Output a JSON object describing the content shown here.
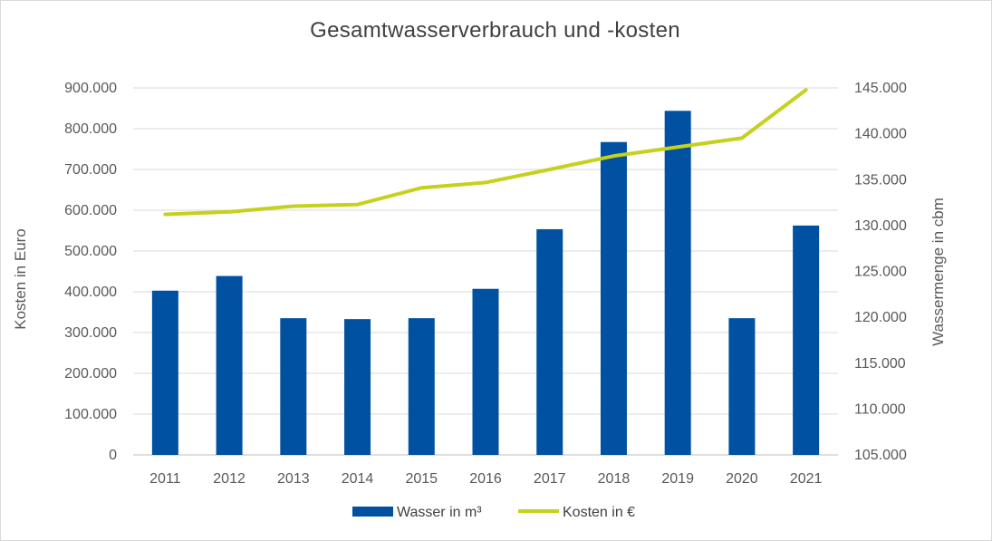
{
  "chart_data": {
    "type": "bar",
    "title": "Gesamtwasserverbrauch  und -kosten",
    "categories": [
      "2011",
      "2012",
      "2013",
      "2014",
      "2015",
      "2016",
      "2017",
      "2018",
      "2019",
      "2020",
      "2021"
    ],
    "series": [
      {
        "name": "Wasser in m³",
        "type": "bar",
        "axis": "right",
        "color": "#0051A1",
        "values": [
          122900,
          124500,
          119900,
          119800,
          119900,
          123100,
          129600,
          139100,
          142500,
          119900,
          130000
        ]
      },
      {
        "name": "Kosten in €",
        "type": "line",
        "axis": "left",
        "color": "#C5D11C",
        "values": [
          590000,
          596000,
          610000,
          614000,
          655000,
          668000,
          700000,
          733000,
          755000,
          777000,
          895000
        ]
      }
    ],
    "ylabel_left": "Kosten in Euro",
    "ylabel_right": "Wassermenge in cbm",
    "ylim_left": [
      0,
      900000
    ],
    "ylim_right": [
      105000,
      145000
    ],
    "yticks_left": [
      "0",
      "100.000",
      "200.000",
      "300.000",
      "400.000",
      "500.000",
      "600.000",
      "700.000",
      "800.000",
      "900.000"
    ],
    "yticks_right": [
      "105.000",
      "110.000",
      "115.000",
      "120.000",
      "125.000",
      "130.000",
      "135.000",
      "140.000",
      "145.000"
    ],
    "grid": true,
    "legend_position": "bottom"
  }
}
